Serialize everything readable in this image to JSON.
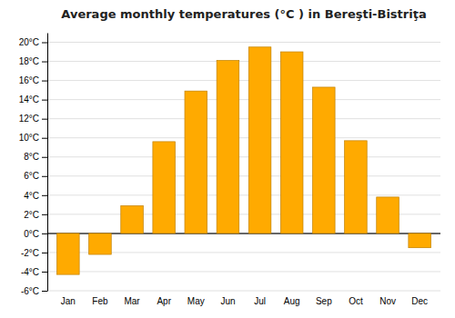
{
  "chart_data": {
    "type": "bar",
    "title": "Average monthly temperatures (°C ) in Bereşti-Bistriţa",
    "categories": [
      "Jan",
      "Feb",
      "Mar",
      "Apr",
      "May",
      "Jun",
      "Jul",
      "Aug",
      "Sep",
      "Oct",
      "Nov",
      "Dec"
    ],
    "values": [
      -4.3,
      -2.2,
      2.9,
      9.6,
      14.9,
      18.1,
      19.5,
      19.0,
      15.3,
      9.7,
      3.8,
      -1.5
    ],
    "color": "#FFAA00",
    "ylim": [
      -6,
      21
    ],
    "yticks": [
      {
        "value": -6,
        "label": "-6°C"
      },
      {
        "value": -4,
        "label": "-4°C"
      },
      {
        "value": -2,
        "label": "-2°C"
      },
      {
        "value": 0,
        "label": "0°C"
      },
      {
        "value": 2,
        "label": "2°C"
      },
      {
        "value": 4,
        "label": "4°C"
      },
      {
        "value": 6,
        "label": "6°C"
      },
      {
        "value": 8,
        "label": "8°C"
      },
      {
        "value": 10,
        "label": "10°C"
      },
      {
        "value": 12,
        "label": "12°C"
      },
      {
        "value": 14,
        "label": "14°C"
      },
      {
        "value": 16,
        "label": "16°C"
      },
      {
        "value": 18,
        "label": "18°C"
      },
      {
        "value": 20,
        "label": "20°C"
      }
    ],
    "grid": true
  }
}
